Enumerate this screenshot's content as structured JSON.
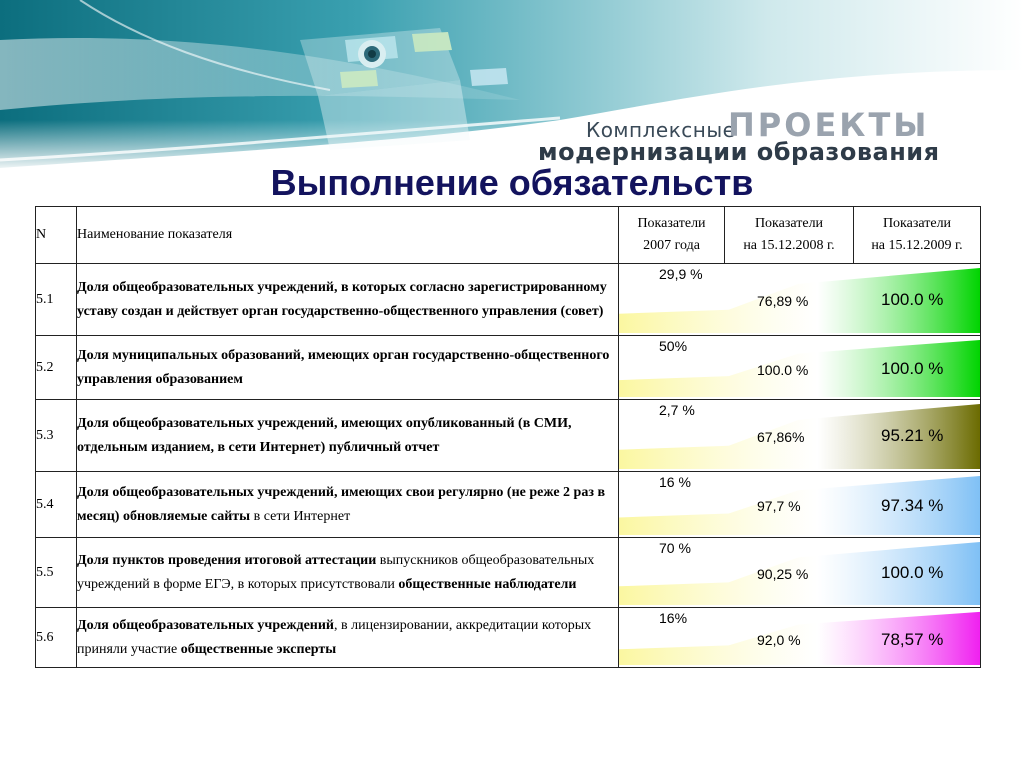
{
  "brand": {
    "line1_small": "Комплексные",
    "line1_big": "ПРОЕКТЫ",
    "line2": "модернизации образования"
  },
  "title": "Выполнение обязательств",
  "table": {
    "headers": {
      "n": "N",
      "name": "Наименование показателя",
      "col1": [
        "Показатели",
        "2007 года"
      ],
      "col2": [
        "Показатели",
        "на 15.12.2008 г."
      ],
      "col3": [
        "Показатели",
        "на 15.12.2009 г."
      ]
    },
    "rows": [
      {
        "n": "5.1",
        "name_parts": [
          {
            "text": "Доля общеобразовательных учреждений, в которых согласно зарегистрированному уставу создан и действует орган государственно-общественного управления (совет)",
            "bold": true
          }
        ],
        "v2007": "29,9 %",
        "v2008": "76,89 %",
        "v2009": "100.0 %",
        "gradient": [
          "#fbf7a0",
          "#00d400"
        ]
      },
      {
        "n": "5.2",
        "name_parts": [
          {
            "text": "Доля муниципальных образований, имеющих орган государственно-общественного управления образованием",
            "bold": true
          }
        ],
        "v2007": "50%",
        "v2008": "100.0 %",
        "v2009": "100.0 %",
        "gradient": [
          "#fbf7a0",
          "#00d400"
        ]
      },
      {
        "n": "5.3",
        "name_parts": [
          {
            "text": "Доля общеобразовательных учреждений, имеющих опубликованный (в СМИ, отдельным изданием, в сети Интернет) публичный отчет",
            "bold": true
          }
        ],
        "v2007": "2,7 %",
        "v2008": "67,86%",
        "v2009": "95.21 %",
        "gradient": [
          "#fbf7a0",
          "#6b6b00"
        ]
      },
      {
        "n": "5.4",
        "name_parts": [
          {
            "text": "Доля общеобразовательных учреждений, имеющих свои регулярно (не реже 2 раз в месяц) обновляемые сайты",
            "bold": true
          },
          {
            "text": " в сети Интернет",
            "bold": false
          }
        ],
        "v2007": "16 %",
        "v2008": "97,7 %",
        "v2009": "97.34 %",
        "gradient": [
          "#fbf7a0",
          "#7fc0f5"
        ]
      },
      {
        "n": "5.5",
        "name_parts": [
          {
            "text": "Доля пунктов проведения итоговой аттестации",
            "bold": true
          },
          {
            "text": " выпускников общеобразовательных учреждений в форме ЕГЭ, в которых присутствовали ",
            "bold": false
          },
          {
            "text": "общественные наблюдатели",
            "bold": true
          }
        ],
        "v2007": "70 %",
        "v2008": "90,25 %",
        "v2009": "100.0 %",
        "gradient": [
          "#fbf7a0",
          "#7fc0f5"
        ]
      },
      {
        "n": "5.6",
        "name_parts": [
          {
            "text": "Доля общеобразовательных учреждений",
            "bold": true
          },
          {
            "text": ", в лицензировании, аккредитации которых приняли участие ",
            "bold": false
          },
          {
            "text": "общественные эксперты",
            "bold": true
          }
        ],
        "v2007": "16%",
        "v2008": "92,0 %",
        "v2009": "78,57 %",
        "gradient": [
          "#fbf7a0",
          "#f020f0"
        ]
      }
    ]
  }
}
